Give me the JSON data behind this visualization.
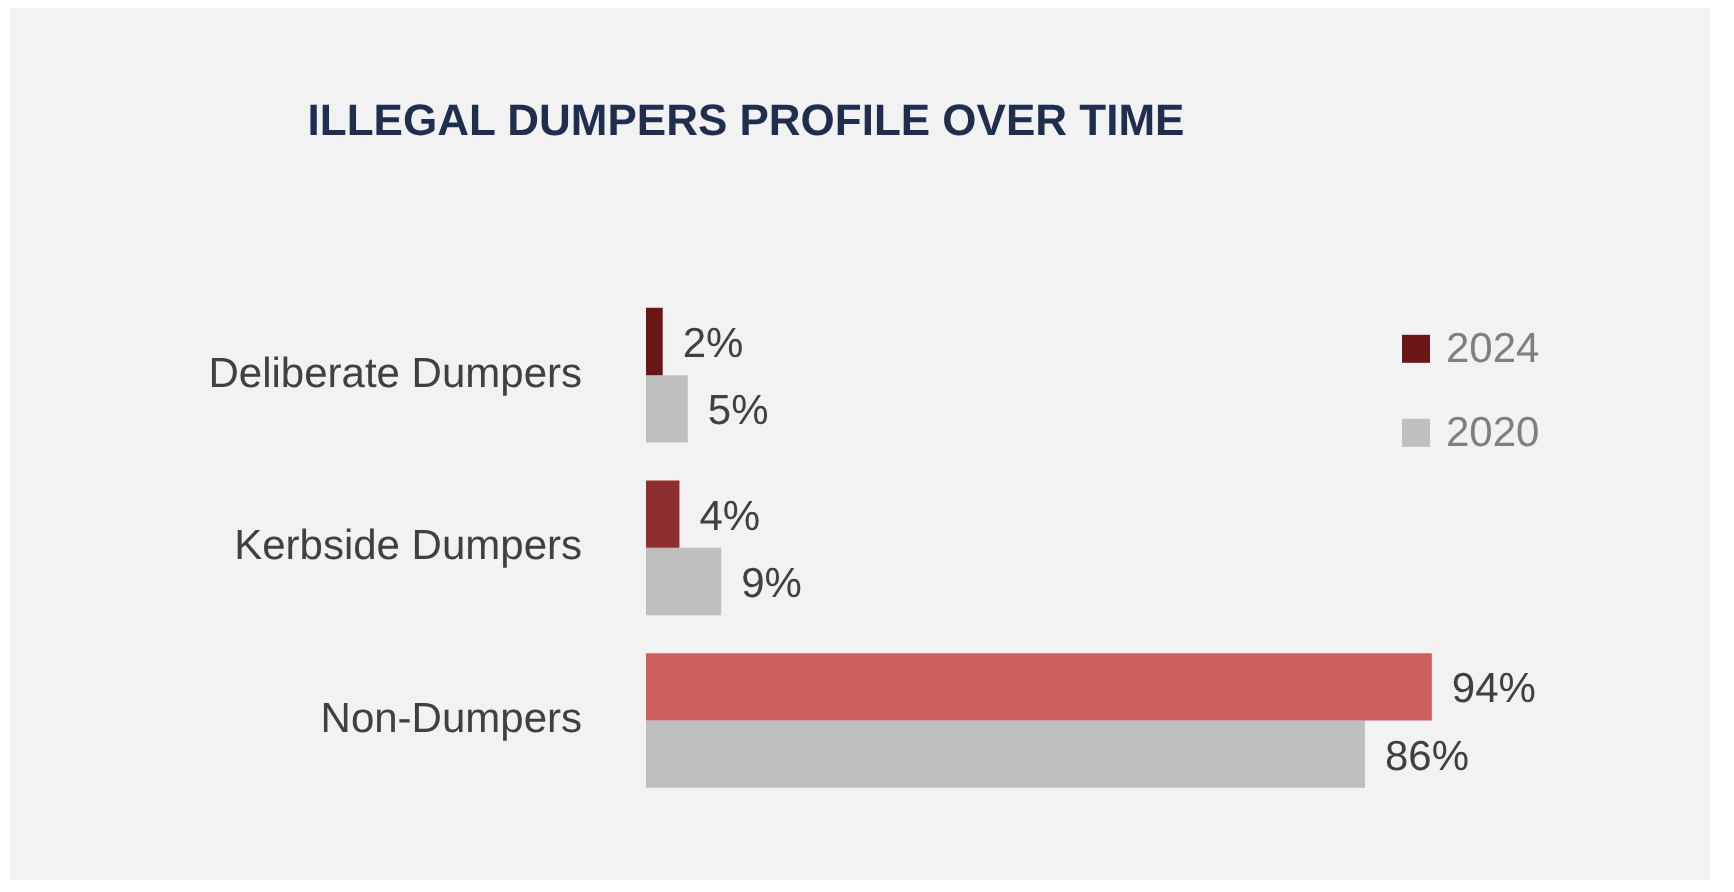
{
  "chart_data": {
    "type": "bar",
    "orientation": "horizontal",
    "title": "ILLEGAL DUMPERS PROFILE OVER TIME",
    "categories": [
      "Deliberate Dumpers",
      "Kerbside Dumpers",
      "Non-Dumpers"
    ],
    "series": [
      {
        "name": "2024",
        "color": "#6b1616",
        "colors": [
          "#6b1616",
          "#8e2e2e",
          "#cd5f5f"
        ],
        "values": [
          2,
          4,
          94
        ],
        "value_labels": [
          "2%",
          "4%",
          "94%"
        ]
      },
      {
        "name": "2020",
        "color": "#bfbfbf",
        "values": [
          5,
          9,
          86
        ],
        "value_labels": [
          "5%",
          "9%",
          "86%"
        ]
      }
    ],
    "tick_labels": "y",
    "grid": false,
    "legend": "top right"
  }
}
